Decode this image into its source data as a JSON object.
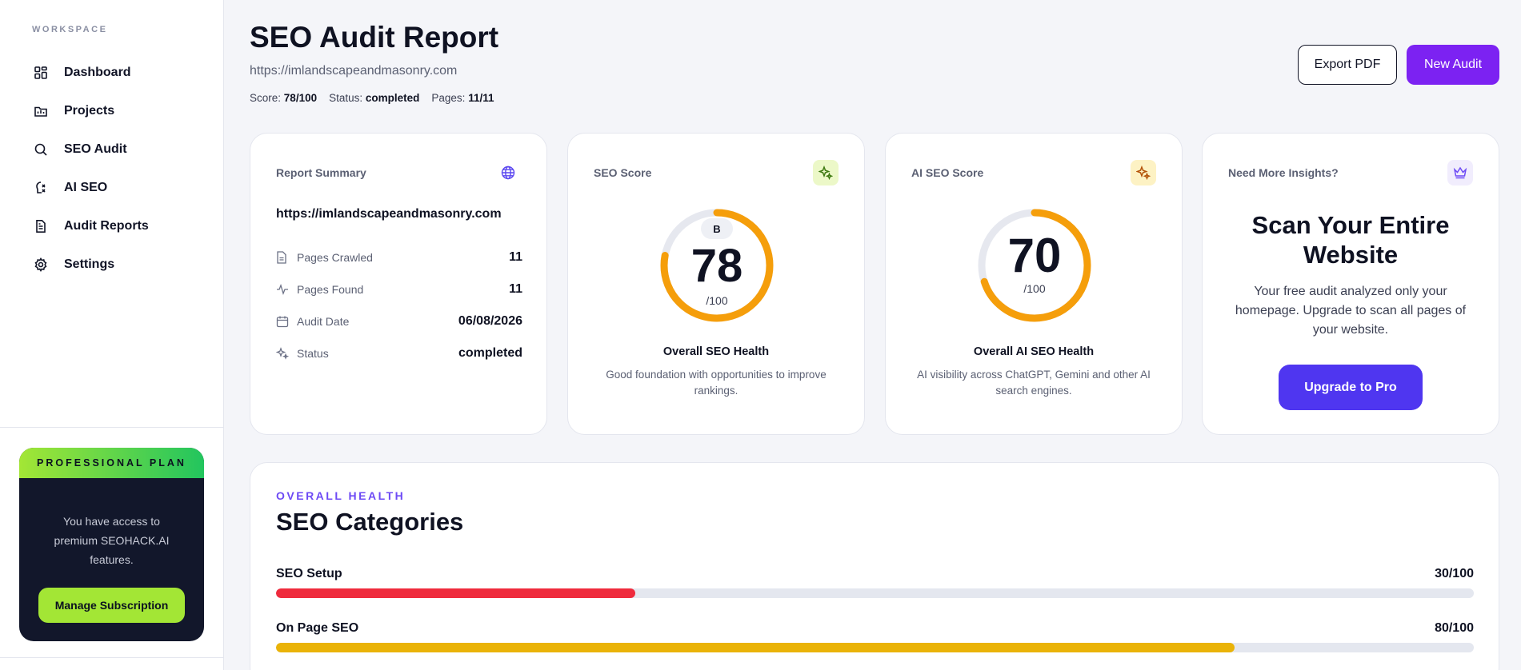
{
  "sidebar": {
    "section_label": "WORKSPACE",
    "items": [
      {
        "label": "Dashboard",
        "icon": "dashboard-icon"
      },
      {
        "label": "Projects",
        "icon": "projects-icon"
      },
      {
        "label": "SEO Audit",
        "icon": "search-icon"
      },
      {
        "label": "AI SEO",
        "icon": "ai-seo-icon"
      },
      {
        "label": "Audit Reports",
        "icon": "report-icon"
      },
      {
        "label": "Settings",
        "icon": "gear-icon"
      }
    ],
    "plan": {
      "header": "PROFESSIONAL PLAN",
      "text": "You have access to premium SEOHACK.AI features.",
      "button": "Manage Subscription"
    }
  },
  "header": {
    "title": "SEO Audit Report",
    "url": "https://imlandscapeandmasonry.com",
    "meta": {
      "score_label": "Score:",
      "score_value": "78/100",
      "status_label": "Status:",
      "status_value": "completed",
      "pages_label": "Pages:",
      "pages_value": "11/11"
    },
    "export_button": "Export PDF",
    "new_audit_button": "New Audit"
  },
  "summary": {
    "title": "Report Summary",
    "url": "https://imlandscapeandmasonry.com",
    "rows": [
      {
        "label": "Pages Crawled",
        "value": "11"
      },
      {
        "label": "Pages Found",
        "value": "11"
      },
      {
        "label": "Audit Date",
        "value": "06/08/2026"
      },
      {
        "label": "Status",
        "value": "completed"
      }
    ]
  },
  "seo_score": {
    "title": "SEO Score",
    "grade": "B",
    "value": "78",
    "max": "/100",
    "percent": 78,
    "health_title": "Overall SEO Health",
    "health_desc": "Good foundation with opportunities to improve rankings."
  },
  "ai_score": {
    "title": "AI SEO Score",
    "value": "70",
    "max": "/100",
    "percent": 70,
    "health_title": "Overall AI SEO Health",
    "health_desc": "AI visibility across ChatGPT, Gemini and other AI search engines."
  },
  "upgrade": {
    "title": "Need More Insights?",
    "headline": "Scan Your Entire Website",
    "text": "Your free audit analyzed only your homepage. Upgrade to scan all pages of your website.",
    "button": "Upgrade to Pro"
  },
  "categories": {
    "eyebrow": "OVERALL HEALTH",
    "title": "SEO Categories",
    "items": [
      {
        "name": "SEO Setup",
        "score": "30/100",
        "percent": 30,
        "color": "#ef2b3d"
      },
      {
        "name": "On Page SEO",
        "score": "80/100",
        "percent": 80,
        "color": "#eab308"
      }
    ]
  },
  "colors": {
    "accent": "#7c22f2",
    "gauge": "#f59e0b",
    "gauge_track": "#e6e8ef"
  }
}
